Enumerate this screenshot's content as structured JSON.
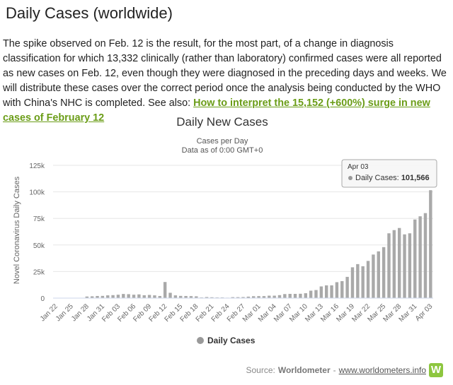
{
  "page": {
    "heading": "Daily Cases (worldwide)",
    "intro_text": "The spike observed on Feb. 12 is the result, for the most part, of a change in diagnosis classification for which 13,332 clinically (rather than laboratory) confirmed cases were all reported as new cases on Feb. 12, even though they were diagnosed in the preceding days and weeks. We will distribute these cases over the correct period once the analysis being conducted by the WHO with China's NHC is completed. See also: ",
    "intro_link": "How to interpret the 15,152 (+600%) surge in new cases of February 12"
  },
  "source": {
    "prefix": "Source:",
    "name": "Worldometer",
    "separator": "-",
    "url_text": "www.worldometers.info",
    "logo_letter": "W"
  },
  "colors": {
    "bar": "#a9a9a9",
    "link": "#6b9d18",
    "brand": "#8dc63f"
  },
  "chart_data": {
    "type": "bar",
    "title": "Daily New Cases",
    "subtitle_line1": "Cases per Day",
    "subtitle_line2": "Data as of 0:00 GMT+0",
    "ylabel": "Novel Coronavirus Daily Cases",
    "ylim": [
      0,
      125000
    ],
    "yticks": [
      0,
      25000,
      50000,
      75000,
      100000,
      125000
    ],
    "ytick_labels": [
      "0",
      "25k",
      "50k",
      "75k",
      "100k",
      "125k"
    ],
    "grid": true,
    "legend_position": "bottom-center",
    "categories": [
      "Jan 22",
      "Jan 23",
      "Jan 24",
      "Jan 25",
      "Jan 26",
      "Jan 27",
      "Jan 28",
      "Jan 29",
      "Jan 30",
      "Jan 31",
      "Feb 01",
      "Feb 02",
      "Feb 03",
      "Feb 04",
      "Feb 05",
      "Feb 06",
      "Feb 07",
      "Feb 08",
      "Feb 09",
      "Feb 10",
      "Feb 11",
      "Feb 12",
      "Feb 13",
      "Feb 14",
      "Feb 15",
      "Feb 16",
      "Feb 17",
      "Feb 18",
      "Feb 19",
      "Feb 20",
      "Feb 21",
      "Feb 22",
      "Feb 23",
      "Feb 24",
      "Feb 25",
      "Feb 26",
      "Feb 27",
      "Feb 28",
      "Feb 29",
      "Mar 01",
      "Mar 02",
      "Mar 03",
      "Mar 04",
      "Mar 05",
      "Mar 06",
      "Mar 07",
      "Mar 08",
      "Mar 09",
      "Mar 10",
      "Mar 11",
      "Mar 12",
      "Mar 13",
      "Mar 14",
      "Mar 15",
      "Mar 16",
      "Mar 17",
      "Mar 18",
      "Mar 19",
      "Mar 20",
      "Mar 21",
      "Mar 22",
      "Mar 23",
      "Mar 24",
      "Mar 25",
      "Mar 26",
      "Mar 27",
      "Mar 28",
      "Mar 29",
      "Mar 30",
      "Mar 31",
      "Apr 01",
      "Apr 02",
      "Apr 03"
    ],
    "xtick_labels": [
      "Jan 22",
      "Jan 25",
      "Jan 28",
      "Jan 31",
      "Feb 03",
      "Feb 06",
      "Feb 09",
      "Feb 12",
      "Feb 15",
      "Feb 18",
      "Feb 21",
      "Feb 24",
      "Feb 27",
      "Mar 01",
      "Mar 04",
      "Mar 07",
      "Mar 10",
      "Mar 13",
      "Mar 16",
      "Mar 19",
      "Mar 22",
      "Mar 25",
      "Mar 28",
      "Mar 31",
      "Apr 03"
    ],
    "series": [
      {
        "name": "Daily Cases",
        "values": [
          0,
          0,
          0,
          0,
          0,
          0,
          1500,
          1700,
          2000,
          2100,
          2600,
          2800,
          3200,
          3900,
          3700,
          3200,
          3500,
          2700,
          3000,
          2600,
          2000,
          15152,
          5000,
          2600,
          2100,
          2000,
          1900,
          1700,
          600,
          1000,
          800,
          600,
          600,
          400,
          900,
          900,
          1000,
          1400,
          1800,
          1900,
          1900,
          2300,
          2300,
          2800,
          3800,
          4000,
          4000,
          4100,
          4600,
          7000,
          7600,
          11000,
          12000,
          12000,
          15000,
          16000,
          20000,
          29000,
          32000,
          30000,
          35000,
          41000,
          44000,
          48000,
          61000,
          64000,
          66000,
          60000,
          61000,
          74000,
          77000,
          80000,
          101566
        ]
      }
    ],
    "tooltip": {
      "date": "Apr 03",
      "series_label": "Daily Cases:",
      "value": "101,566"
    }
  }
}
